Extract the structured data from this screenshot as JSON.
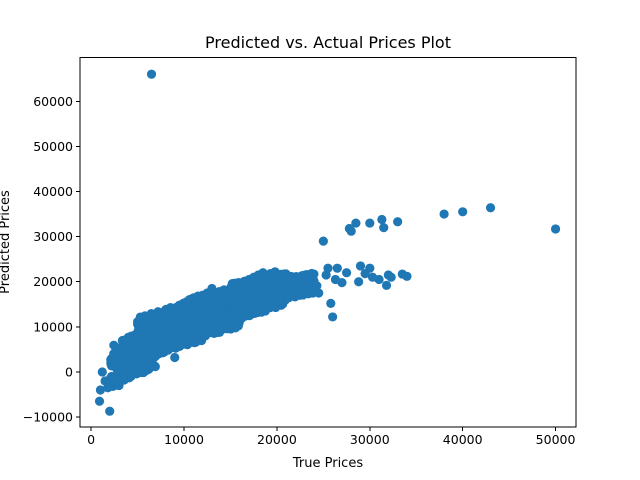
{
  "chart_data": {
    "type": "scatter",
    "title": "Predicted vs. Actual Prices Plot",
    "xlabel": "True Prices",
    "ylabel": "Predicted Prices",
    "xlim": [
      -1200,
      52200
    ],
    "ylim": [
      -12200,
      69700
    ],
    "xticks": [
      0,
      10000,
      20000,
      30000,
      40000,
      50000
    ],
    "xtick_labels": [
      "0",
      "10000",
      "20000",
      "30000",
      "40000",
      "50000"
    ],
    "yticks": [
      -10000,
      0,
      10000,
      20000,
      30000,
      40000,
      50000,
      60000
    ],
    "ytick_labels": [
      "−10000",
      "0",
      "10000",
      "20000",
      "30000",
      "40000",
      "50000",
      "60000"
    ],
    "grid": false,
    "legend": "none",
    "marker_color": "#1f77b4",
    "series": [
      {
        "name": "",
        "points": [
          [
            6500,
            66000
          ],
          [
            900,
            -6500
          ],
          [
            1000,
            -4000
          ],
          [
            1200,
            0
          ],
          [
            1500,
            -2000
          ],
          [
            1800,
            -3500
          ],
          [
            2000,
            -8700
          ],
          [
            2200,
            -1000
          ],
          [
            2400,
            1500
          ],
          [
            2500,
            -2500
          ],
          [
            2800,
            500
          ],
          [
            2300,
            2800
          ],
          [
            3000,
            -3000
          ],
          [
            3100,
            2000
          ],
          [
            3300,
            4500
          ],
          [
            3500,
            -1800
          ],
          [
            3600,
            1200
          ],
          [
            3800,
            3000
          ],
          [
            4000,
            800
          ],
          [
            4200,
            3800
          ],
          [
            4500,
            2200
          ],
          [
            4700,
            5000
          ],
          [
            5000,
            3500
          ],
          [
            5200,
            6500
          ],
          [
            5500,
            4200
          ],
          [
            5800,
            7800
          ],
          [
            6000,
            5500
          ],
          [
            6200,
            9000
          ],
          [
            6500,
            6800
          ],
          [
            6800,
            10500
          ],
          [
            7000,
            8000
          ],
          [
            7300,
            11500
          ],
          [
            7500,
            9300
          ],
          [
            7800,
            12500
          ],
          [
            8000,
            10200
          ],
          [
            8300,
            13000
          ],
          [
            8500,
            11000
          ],
          [
            8800,
            14000
          ],
          [
            9000,
            3200
          ],
          [
            9200,
            12000
          ],
          [
            9500,
            14800
          ],
          [
            9800,
            11500
          ],
          [
            10000,
            15300
          ],
          [
            10300,
            12800
          ],
          [
            10500,
            15800
          ],
          [
            10800,
            13500
          ],
          [
            11000,
            16200
          ],
          [
            11300,
            12200
          ],
          [
            11500,
            16800
          ],
          [
            11800,
            14000
          ],
          [
            12000,
            17000
          ],
          [
            12300,
            13500
          ],
          [
            12500,
            17500
          ],
          [
            12800,
            14500
          ],
          [
            13000,
            18500
          ],
          [
            13300,
            12500
          ],
          [
            13500,
            16000
          ],
          [
            13800,
            17800
          ],
          [
            14000,
            13800
          ],
          [
            14300,
            18200
          ],
          [
            14500,
            15500
          ],
          [
            14800,
            11800
          ],
          [
            15000,
            17500
          ],
          [
            15300,
            18800
          ],
          [
            15500,
            14500
          ],
          [
            15800,
            19000
          ],
          [
            16000,
            16500
          ],
          [
            16300,
            13500
          ],
          [
            16500,
            19800
          ],
          [
            16800,
            17200
          ],
          [
            17000,
            20500
          ],
          [
            17300,
            15800
          ],
          [
            17500,
            21000
          ],
          [
            17800,
            18000
          ],
          [
            18000,
            21500
          ],
          [
            18300,
            16500
          ],
          [
            18500,
            22000
          ],
          [
            18800,
            19000
          ],
          [
            19000,
            14800
          ],
          [
            19300,
            21800
          ],
          [
            19500,
            18200
          ],
          [
            19800,
            22200
          ],
          [
            20000,
            17500
          ],
          [
            20300,
            20800
          ],
          [
            20500,
            16800
          ],
          [
            20800,
            21500
          ],
          [
            21000,
            19500
          ],
          [
            21300,
            16500
          ],
          [
            21500,
            20500
          ],
          [
            22000,
            18500
          ],
          [
            22500,
            17000
          ],
          [
            23000,
            19500
          ],
          [
            23500,
            18800
          ],
          [
            24000,
            20000
          ],
          [
            24500,
            17500
          ],
          [
            25000,
            29000
          ],
          [
            25300,
            21500
          ],
          [
            25500,
            23000
          ],
          [
            25800,
            15200
          ],
          [
            26000,
            12200
          ],
          [
            26300,
            20500
          ],
          [
            26500,
            23000
          ],
          [
            27000,
            19800
          ],
          [
            27500,
            22000
          ],
          [
            27800,
            31800
          ],
          [
            28000,
            31200
          ],
          [
            28500,
            33000
          ],
          [
            28800,
            20000
          ],
          [
            29000,
            23500
          ],
          [
            29500,
            21800
          ],
          [
            30000,
            23000
          ],
          [
            30000,
            33000
          ],
          [
            30300,
            21000
          ],
          [
            31000,
            20500
          ],
          [
            31300,
            33800
          ],
          [
            31500,
            32000
          ],
          [
            31800,
            19200
          ],
          [
            32000,
            21500
          ],
          [
            32300,
            21000
          ],
          [
            33000,
            33300
          ],
          [
            33500,
            21700
          ],
          [
            34000,
            21200
          ],
          [
            38000,
            35000
          ],
          [
            40000,
            35500
          ],
          [
            43000,
            36400
          ],
          [
            50000,
            31700
          ],
          [
            6600,
            8200
          ],
          [
            7100,
            6400
          ],
          [
            8700,
            7600
          ],
          [
            9700,
            9200
          ],
          [
            10600,
            10800
          ],
          [
            12100,
            11200
          ],
          [
            13700,
            14900
          ],
          [
            15200,
            15700
          ],
          [
            16700,
            15300
          ],
          [
            18200,
            17200
          ],
          [
            19700,
            19800
          ],
          [
            21200,
            21200
          ],
          [
            22300,
            20100
          ],
          [
            23300,
            17900
          ],
          [
            24300,
            19100
          ]
        ]
      }
    ],
    "dense_clusters": [
      {
        "x": [
          2000,
          7000
        ],
        "y_from": [
          -3500,
          1000
        ],
        "y_to": [
          5500,
          11000
        ],
        "n": 220,
        "seed": 11
      },
      {
        "x": [
          5000,
          12000
        ],
        "y_from": [
          2500,
          7000
        ],
        "y_to": [
          12000,
          16500
        ],
        "n": 520,
        "seed": 23
      },
      {
        "x": [
          10000,
          16000
        ],
        "y_from": [
          6500,
          10000
        ],
        "y_to": [
          16000,
          18500
        ],
        "n": 480,
        "seed": 37
      },
      {
        "x": [
          15000,
          21000
        ],
        "y_from": [
          11000,
          15000
        ],
        "y_to": [
          19500,
          22000
        ],
        "n": 480,
        "seed": 41
      },
      {
        "x": [
          20000,
          24000
        ],
        "y_from": [
          15500,
          17500
        ],
        "y_to": [
          21000,
          22000
        ],
        "n": 160,
        "seed": 53
      }
    ]
  }
}
